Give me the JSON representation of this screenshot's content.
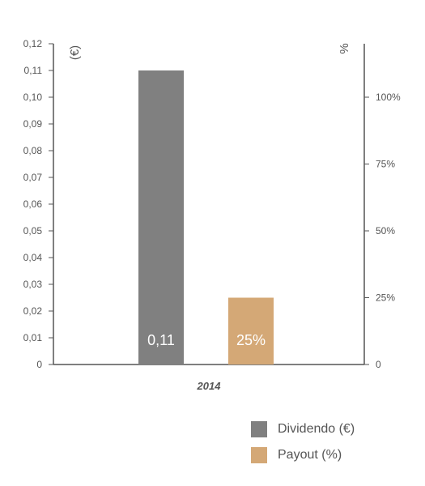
{
  "chart_data": {
    "type": "bar",
    "categories": [
      "2014"
    ],
    "series": [
      {
        "name": "Dividendo (€)",
        "values": [
          0.11
        ],
        "axis": "left",
        "color": "#808080",
        "data_label": "0,11"
      },
      {
        "name": "Payout (%)",
        "values": [
          25
        ],
        "axis": "right",
        "color": "#d4a876",
        "data_label": "25%"
      }
    ],
    "y_left": {
      "unit_label": "(€)",
      "ylim": [
        0,
        0.12
      ],
      "ticks": [
        0,
        0.01,
        0.02,
        0.03,
        0.04,
        0.05,
        0.06,
        0.07,
        0.08,
        0.09,
        0.1,
        0.11,
        0.12
      ],
      "tick_labels": [
        "0",
        "0,01",
        "0,02",
        "0,03",
        "0,04",
        "0,05",
        "0,06",
        "0,07",
        "0,08",
        "0,09",
        "0,10",
        "0,11",
        "0,12"
      ]
    },
    "y_right": {
      "unit_label": "%",
      "ylim": [
        0,
        120
      ],
      "ticks": [
        0,
        25,
        50,
        75,
        100
      ],
      "tick_labels": [
        "0",
        "25%",
        "50%",
        "75%",
        "100%"
      ]
    },
    "grid": false,
    "legend_position": "bottom-right"
  }
}
